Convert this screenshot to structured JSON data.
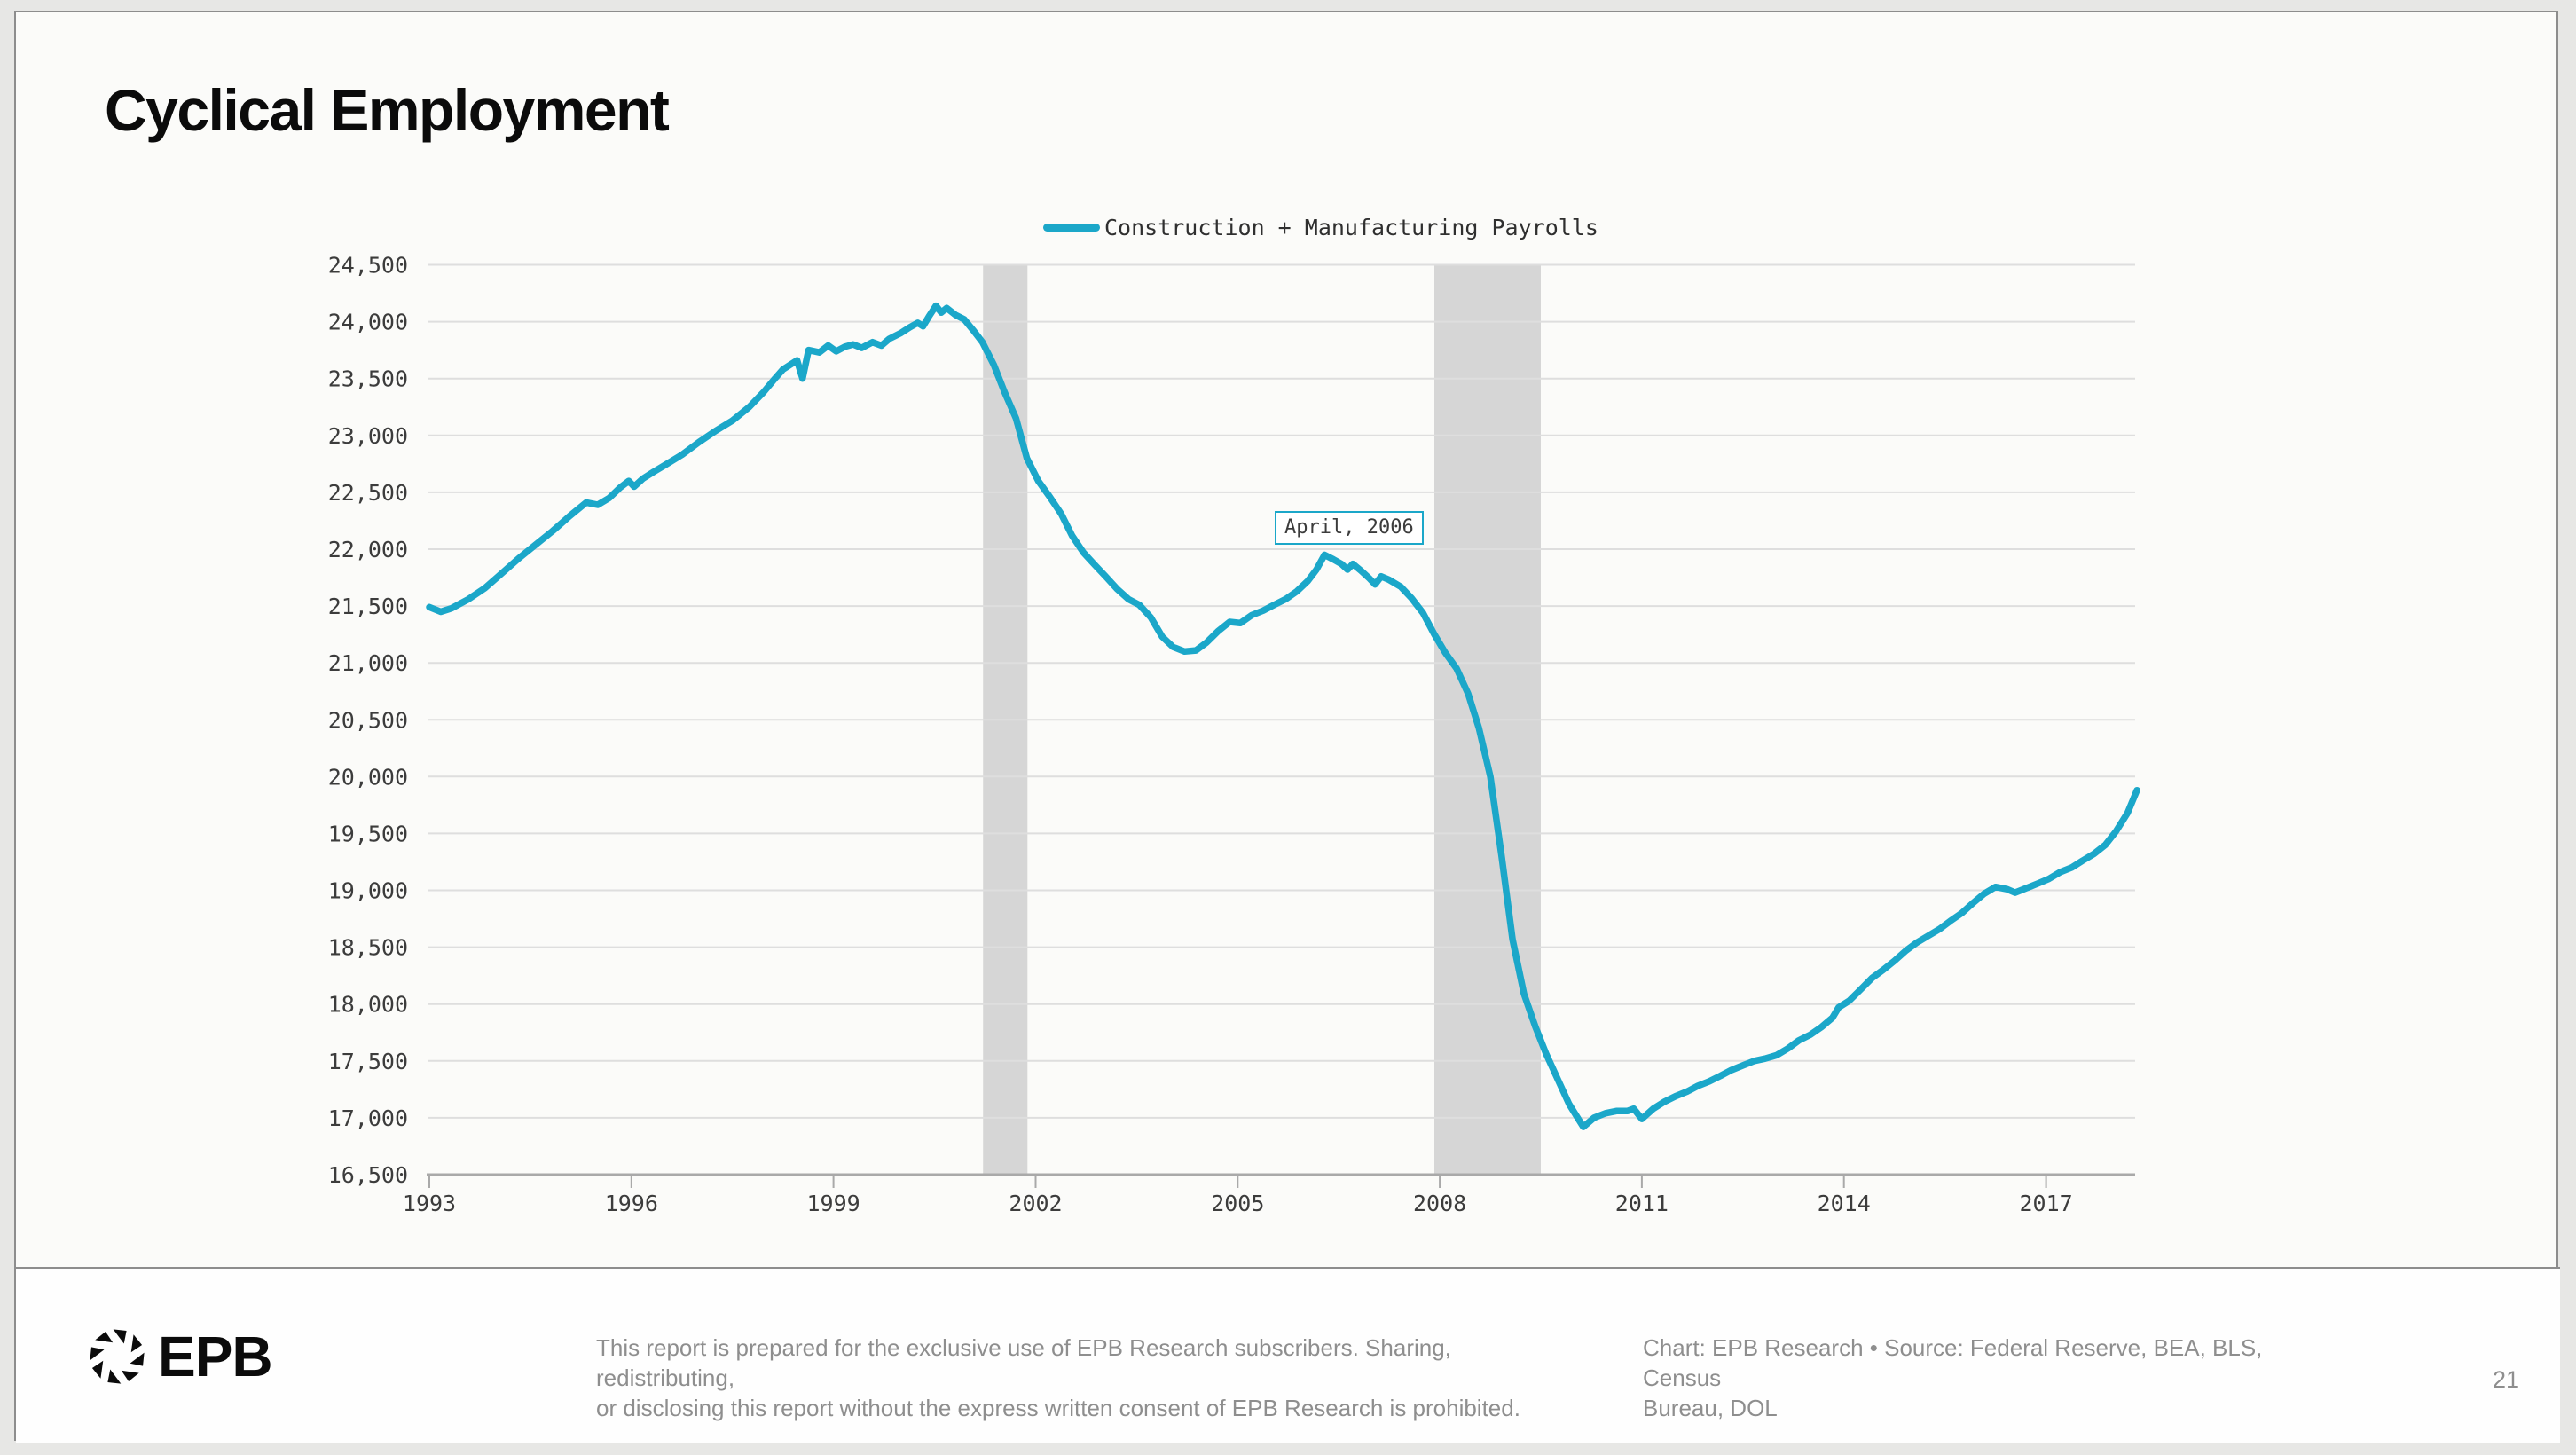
{
  "title": "Cyclical Employment",
  "legend": {
    "label": "Construction + Manufacturing Payrolls"
  },
  "footer": {
    "logo_text": "EPB",
    "logo_icon": "aperture-icon",
    "disclaimer_line1": "This report is prepared for the exclusive use of EPB Research subscribers. Sharing, redistributing,",
    "disclaimer_line2": "or disclosing this report without the express written consent of EPB Research is prohibited.",
    "source_line1": "Chart: EPB Research  •  Source: Federal Reserve, BEA, BLS, Census",
    "source_line2": "Bureau, DOL",
    "page_number": "21"
  },
  "colors": {
    "accent": "#1BA7C9",
    "recession_band": "#D6D6D6",
    "grid": "#DEDEDE",
    "axis": "#A9A9A9",
    "tick_text": "#3C3C3C",
    "footer_text": "#8E8E8E",
    "title_text": "#0B0B0B"
  },
  "chart_data": {
    "type": "line",
    "title": "Cyclical Employment",
    "xlabel": "",
    "ylabel": "",
    "legend_position": "top",
    "grid": "horizontal",
    "x_axis_range": [
      1993,
      2018.6
    ],
    "y_axis_range": [
      16500,
      24500
    ],
    "y_ticks": [
      24500,
      24000,
      23500,
      23000,
      22500,
      22000,
      21500,
      21000,
      20500,
      20000,
      19500,
      19000,
      18500,
      18000,
      17500,
      17000,
      16500
    ],
    "y_tick_labels": [
      "24,500",
      "24,000",
      "23,500",
      "23,000",
      "22,500",
      "22,000",
      "21,500",
      "21,000",
      "20,500",
      "20,000",
      "19,500",
      "19,000",
      "18,500",
      "18,000",
      "17,500",
      "17,000",
      "16,500"
    ],
    "x_ticks": [
      1993,
      1996,
      1999,
      2002,
      2005,
      2008,
      2011,
      2014,
      2017
    ],
    "x_tick_labels": [
      "1993",
      "1996",
      "1999",
      "2002",
      "2005",
      "2008",
      "2011",
      "2014",
      "2017"
    ],
    "recession_bands": [
      {
        "start": 2001.22,
        "end": 2001.88
      },
      {
        "start": 2007.92,
        "end": 2009.5
      }
    ],
    "annotation": {
      "label": "April, 2006",
      "x": 2006.29,
      "y": 22000
    },
    "series": [
      {
        "name": "Construction + Manufacturing Payrolls",
        "color": "#1BA7C9",
        "x": [
          1993.0,
          1993.17,
          1993.33,
          1993.58,
          1993.83,
          1994.08,
          1994.33,
          1994.58,
          1994.83,
          1995.08,
          1995.33,
          1995.5,
          1995.67,
          1995.83,
          1995.96,
          1996.04,
          1996.17,
          1996.33,
          1996.5,
          1996.75,
          1997.0,
          1997.25,
          1997.5,
          1997.75,
          1997.96,
          1998.13,
          1998.25,
          1998.38,
          1998.46,
          1998.54,
          1998.63,
          1998.79,
          1998.92,
          1999.04,
          1999.17,
          1999.29,
          1999.42,
          1999.58,
          1999.71,
          1999.83,
          2000.0,
          2000.13,
          2000.25,
          2000.33,
          2000.42,
          2000.52,
          2000.6,
          2000.68,
          2000.81,
          2000.94,
          2001.08,
          2001.21,
          2001.38,
          2001.54,
          2001.71,
          2001.87,
          2002.04,
          2002.21,
          2002.38,
          2002.54,
          2002.71,
          2002.88,
          2003.04,
          2003.21,
          2003.38,
          2003.54,
          2003.71,
          2003.88,
          2004.04,
          2004.21,
          2004.38,
          2004.54,
          2004.71,
          2004.88,
          2005.04,
          2005.21,
          2005.38,
          2005.54,
          2005.71,
          2005.88,
          2006.04,
          2006.17,
          2006.29,
          2006.42,
          2006.54,
          2006.63,
          2006.71,
          2006.83,
          2006.96,
          2007.04,
          2007.13,
          2007.25,
          2007.42,
          2007.58,
          2007.75,
          2007.92,
          2008.08,
          2008.25,
          2008.42,
          2008.58,
          2008.75,
          2008.92,
          2009.08,
          2009.25,
          2009.42,
          2009.58,
          2009.75,
          2009.92,
          2010.13,
          2010.29,
          2010.46,
          2010.63,
          2010.79,
          2010.88,
          2011.0,
          2011.17,
          2011.33,
          2011.5,
          2011.67,
          2011.83,
          2012.0,
          2012.17,
          2012.33,
          2012.5,
          2012.67,
          2012.83,
          2013.0,
          2013.17,
          2013.33,
          2013.5,
          2013.67,
          2013.83,
          2013.92,
          2014.08,
          2014.25,
          2014.42,
          2014.58,
          2014.75,
          2014.92,
          2015.08,
          2015.25,
          2015.42,
          2015.58,
          2015.75,
          2015.92,
          2016.08,
          2016.25,
          2016.42,
          2016.54,
          2016.71,
          2016.88,
          2017.04,
          2017.21,
          2017.38,
          2017.54,
          2017.71,
          2017.88,
          2018.04,
          2018.21,
          2018.35
        ],
        "y": [
          21490,
          21450,
          21480,
          21560,
          21660,
          21790,
          21920,
          22040,
          22160,
          22290,
          22410,
          22390,
          22450,
          22540,
          22600,
          22550,
          22620,
          22680,
          22740,
          22830,
          22940,
          23040,
          23130,
          23250,
          23380,
          23500,
          23580,
          23630,
          23660,
          23500,
          23750,
          23730,
          23790,
          23740,
          23780,
          23800,
          23770,
          23820,
          23790,
          23850,
          23900,
          23950,
          23990,
          23960,
          24050,
          24140,
          24080,
          24120,
          24060,
          24020,
          23920,
          23820,
          23620,
          23380,
          23150,
          22800,
          22600,
          22460,
          22310,
          22120,
          21970,
          21860,
          21760,
          21650,
          21560,
          21510,
          21400,
          21230,
          21140,
          21100,
          21110,
          21180,
          21280,
          21360,
          21350,
          21420,
          21460,
          21510,
          21560,
          21630,
          21720,
          21820,
          21950,
          21910,
          21870,
          21820,
          21870,
          21810,
          21740,
          21690,
          21760,
          21730,
          21670,
          21570,
          21440,
          21250,
          21090,
          20950,
          20730,
          20430,
          20000,
          19290,
          18570,
          18090,
          17800,
          17560,
          17340,
          17120,
          16920,
          17000,
          17040,
          17060,
          17060,
          17080,
          16990,
          17080,
          17140,
          17190,
          17230,
          17280,
          17320,
          17370,
          17420,
          17460,
          17500,
          17520,
          17550,
          17610,
          17680,
          17730,
          17800,
          17880,
          17970,
          18030,
          18130,
          18230,
          18300,
          18380,
          18470,
          18540,
          18600,
          18660,
          18730,
          18800,
          18890,
          18970,
          19030,
          19010,
          18980,
          19020,
          19060,
          19100,
          19160,
          19200,
          19260,
          19320,
          19400,
          19520,
          19680,
          19880
        ]
      }
    ]
  }
}
